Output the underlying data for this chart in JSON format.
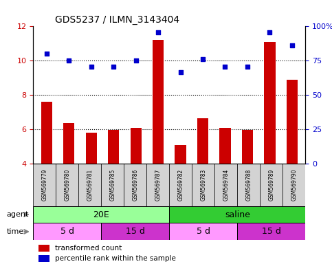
{
  "title": "GDS5237 / ILMN_3143404",
  "samples": [
    "GSM569779",
    "GSM569780",
    "GSM569781",
    "GSM569785",
    "GSM569786",
    "GSM569787",
    "GSM569782",
    "GSM569783",
    "GSM569784",
    "GSM569788",
    "GSM569789",
    "GSM569790"
  ],
  "bar_values": [
    7.6,
    6.35,
    5.8,
    5.95,
    6.1,
    11.2,
    5.1,
    6.65,
    6.1,
    5.95,
    11.1,
    8.9
  ],
  "dot_values": [
    10.4,
    10.0,
    9.65,
    9.65,
    10.0,
    11.65,
    9.35,
    10.1,
    9.65,
    9.65,
    11.65,
    10.9
  ],
  "ylim_left": [
    4,
    12
  ],
  "ylim_right": [
    0,
    100
  ],
  "yticks_left": [
    4,
    6,
    8,
    10,
    12
  ],
  "yticks_right": [
    0,
    25,
    50,
    75,
    100
  ],
  "bar_color": "#cc0000",
  "dot_color": "#0000cc",
  "agent_20E_color": "#99ff99",
  "agent_saline_color": "#33cc33",
  "time_5d_color": "#ff99ff",
  "time_15d_color": "#cc33cc",
  "agent_20E_label": "20E",
  "agent_saline_label": "saline",
  "time_labels": [
    "5 d",
    "15 d",
    "5 d",
    "15 d"
  ],
  "agent_label": "agent",
  "time_label": "time",
  "legend_bar_label": "transformed count",
  "legend_dot_label": "percentile rank within the sample",
  "grid_yticks": [
    6,
    8,
    10
  ],
  "dot_percentile_yticks": [
    25,
    50,
    75
  ],
  "background_color": "#ffffff",
  "sample_bg_color": "#d3d3d3"
}
